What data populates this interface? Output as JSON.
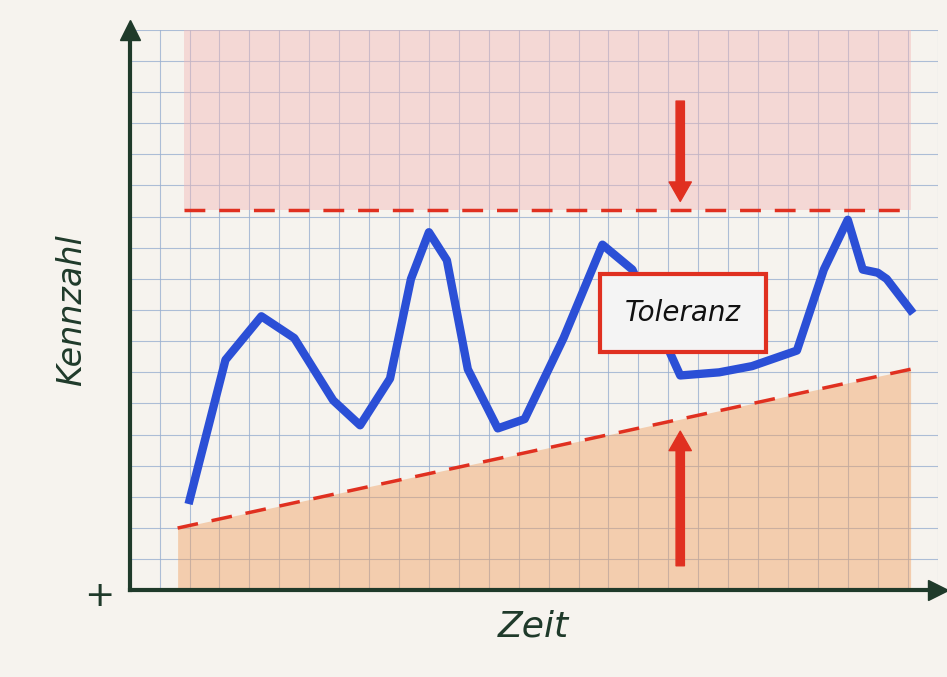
{
  "chart_data": {
    "type": "line",
    "x_label": "Zeit",
    "y_label": "Kennzahl",
    "annotations": [
      "Toleranz",
      "+"
    ],
    "xlim": [
      0,
      27
    ],
    "ylim": [
      0,
      18
    ],
    "xticks": [
      0,
      1,
      2,
      3,
      4,
      5,
      6,
      7,
      8,
      9,
      10,
      11,
      12,
      13,
      14,
      15,
      16,
      17,
      18,
      19,
      20,
      21,
      22,
      23,
      24,
      25,
      26,
      27
    ],
    "yticks": [
      0,
      1,
      2,
      3,
      4,
      5,
      6,
      7,
      8,
      9,
      10,
      11,
      12,
      13,
      14,
      15,
      16,
      17,
      18
    ],
    "grid": true,
    "tick_labels": false,
    "series": [
      {
        "color": "#2b4fd6",
        "line_style": "solid",
        "x": [
          2.0,
          3.2,
          4.4,
          5.5,
          6.8,
          7.7,
          8.7,
          9.4,
          10.0,
          10.6,
          11.3,
          12.3,
          13.2,
          14.5,
          15.8,
          16.8,
          18.4,
          19.7,
          20.8,
          22.3,
          23.2,
          24.0,
          24.5,
          25.0,
          25.3,
          26.1
        ],
        "values": [
          2.9,
          7.4,
          8.8,
          8.1,
          6.1,
          5.3,
          6.8,
          10.0,
          11.5,
          10.6,
          7.1,
          5.2,
          5.5,
          8.1,
          11.1,
          10.3,
          6.9,
          7.0,
          7.2,
          7.7,
          10.3,
          11.9,
          10.3,
          10.2,
          10.0,
          9.0
        ]
      },
      {
        "color": "#e03020",
        "line_style": "dashed",
        "x": [
          1.8,
          26.1
        ],
        "values": [
          12.2,
          12.2
        ]
      },
      {
        "color": "#e03020",
        "line_style": "dashed",
        "x": [
          1.6,
          26.1
        ],
        "values": [
          2.0,
          7.1
        ]
      }
    ]
  }
}
